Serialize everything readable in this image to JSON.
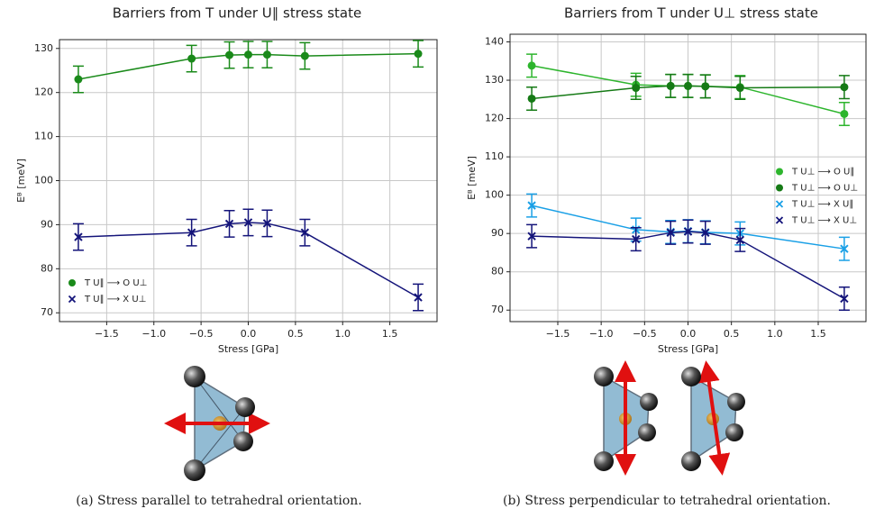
{
  "chart_data": [
    {
      "type": "line",
      "title": "Barriers from T under U∥ stress state",
      "x_label": "Stress [GPa]",
      "y_label": "Eᴮ [meV]",
      "caption": "(a) Stress parallel to tetrahedral orientation.",
      "x": [
        -1.8,
        -0.6,
        -0.2,
        0,
        0.2,
        0.6,
        1.8
      ],
      "series": [
        {
          "name": "T U∥ ⟶ O U⊥",
          "color": "#1a8a1a",
          "marker": "o",
          "values": [
            123,
            127.7,
            128.5,
            128.6,
            128.6,
            128.3,
            128.8
          ],
          "errors": [
            3,
            3,
            3,
            3,
            3,
            3,
            3
          ]
        },
        {
          "name": "T U∥ ⟶ X U⊥",
          "color": "#14147a",
          "marker": "x",
          "values": [
            87.2,
            88.2,
            90.2,
            90.5,
            90.3,
            88.2,
            73.5
          ],
          "errors": [
            3,
            3,
            3,
            3,
            3,
            3,
            3
          ]
        }
      ],
      "xlim": [
        -2,
        2
      ],
      "ylim": [
        68,
        132
      ],
      "xticks": [
        {
          "value": -1.5,
          "label": "−1.5"
        },
        {
          "value": -1,
          "label": "−1.0"
        },
        {
          "value": -0.5,
          "label": "−0.5"
        },
        {
          "value": 0,
          "label": "0.0"
        },
        {
          "value": 0.5,
          "label": "0.5"
        },
        {
          "value": 1,
          "label": "1.0"
        },
        {
          "value": 1.5,
          "label": "1.5"
        }
      ],
      "yticks": [
        70,
        80,
        90,
        100,
        110,
        120,
        130
      ],
      "grid": true,
      "legend": "lower left"
    },
    {
      "type": "line",
      "title": "Barriers from T under U⊥ stress state",
      "x_label": "Stress [GPa]",
      "y_label": "Eᴮ [meV]",
      "caption": "(b) Stress perpendicular to tetrahedral orientation.",
      "x": [
        -1.8,
        -0.6,
        -0.2,
        0,
        0.2,
        0.6,
        1.8
      ],
      "series": [
        {
          "name": "T U⊥ ⟶ O U∥",
          "color": "#2db52d",
          "marker": "o",
          "values": [
            133.8,
            128.8,
            128.5,
            128.5,
            128.4,
            128.2,
            121.2
          ],
          "errors": [
            3,
            3,
            3,
            3,
            3,
            3,
            3
          ]
        },
        {
          "name": "T U⊥ ⟶ O U⊥",
          "color": "#157a15",
          "marker": "o",
          "values": [
            125.2,
            128,
            128.5,
            128.5,
            128.4,
            128,
            128.2
          ],
          "errors": [
            3,
            3,
            3,
            3,
            3,
            3,
            3
          ]
        },
        {
          "name": "T U⊥ ⟶ X U∥",
          "color": "#1aa0e6",
          "marker": "x",
          "values": [
            97.3,
            91,
            90.4,
            90.6,
            90.3,
            90,
            86
          ],
          "errors": [
            3,
            3,
            3,
            3,
            3,
            3,
            3
          ]
        },
        {
          "name": "T U⊥ ⟶ X U⊥",
          "color": "#14147a",
          "marker": "x",
          "values": [
            89.3,
            88.5,
            90.2,
            90.5,
            90.2,
            88.3,
            73
          ],
          "errors": [
            3,
            3,
            3,
            3,
            3,
            3,
            3
          ]
        }
      ],
      "xlim": [
        -2.05,
        2.05
      ],
      "ylim": [
        67,
        142
      ],
      "xticks": [
        {
          "value": -1.5,
          "label": "−1.5"
        },
        {
          "value": -1,
          "label": "−1.0"
        },
        {
          "value": -0.5,
          "label": "−0.5"
        },
        {
          "value": 0,
          "label": "0.0"
        },
        {
          "value": 0.5,
          "label": "0.5"
        },
        {
          "value": 1,
          "label": "1.0"
        },
        {
          "value": 1.5,
          "label": "1.5"
        }
      ],
      "yticks": [
        70,
        80,
        90,
        100,
        110,
        120,
        130,
        140
      ],
      "grid": true,
      "legend": "center right"
    }
  ]
}
